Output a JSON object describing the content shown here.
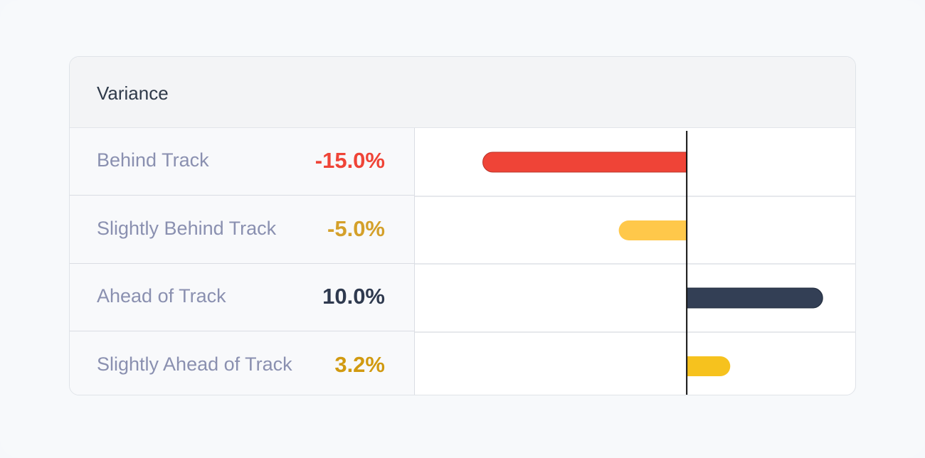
{
  "header": {
    "title": "Variance"
  },
  "rows": [
    {
      "label": "Behind Track",
      "value_text": "-15.0%",
      "color": "#ef4437"
    },
    {
      "label": "Slightly Behind Track",
      "value_text": "-5.0%",
      "color": "#d4a02a"
    },
    {
      "label": "Ahead of Track",
      "value_text": "10.0%",
      "color": "#2f3a4f"
    },
    {
      "label": "Slightly Ahead of Track",
      "value_text": "3.2%",
      "color": "#d19a10"
    }
  ],
  "chart_data": {
    "type": "bar",
    "orientation": "horizontal",
    "categories": [
      "Behind Track",
      "Slightly Behind Track",
      "Ahead of Track",
      "Slightly Ahead of Track"
    ],
    "values": [
      -15.0,
      -5.0,
      10.0,
      3.2
    ],
    "bar_colors": [
      "#ef4437",
      "#ffc84a",
      "#333f55",
      "#f6c21e"
    ],
    "zero_line": true,
    "axis_range": [
      -20,
      12.5
    ]
  }
}
